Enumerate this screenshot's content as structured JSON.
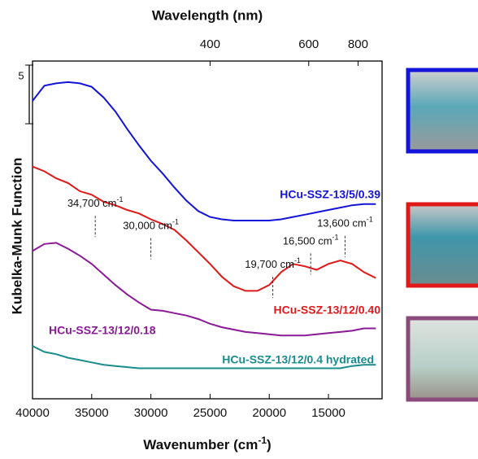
{
  "chart_data": {
    "type": "line",
    "xlabel": "Wavenumber",
    "xlabel_unit": "(cm",
    "xlabel_sup": "-1",
    "xlabel_end": ")",
    "ylabel": "Kubelka-Munk Function",
    "x2label": "Wavelength (nm)",
    "x2ticks": [
      400,
      600,
      800
    ],
    "scale_bar": 5,
    "x": [
      40000,
      39000,
      38000,
      37000,
      36000,
      35000,
      34000,
      33000,
      32000,
      31000,
      30000,
      29000,
      28000,
      27000,
      26000,
      25000,
      24000,
      23000,
      22000,
      21000,
      20000,
      19000,
      18000,
      17000,
      16000,
      15000,
      14000,
      13000,
      12000,
      11000
    ],
    "series": [
      {
        "name": "HCu-SSZ-13/5/0.39",
        "color": "#1414d8",
        "values": [
          25.4,
          26.7,
          26.9,
          27.0,
          26.9,
          26.6,
          25.7,
          24.5,
          23.0,
          21.6,
          20.3,
          19.2,
          18.0,
          16.9,
          16.0,
          15.5,
          15.3,
          15.2,
          15.2,
          15.2,
          15.2,
          15.3,
          15.5,
          15.7,
          15.9,
          16.1,
          16.3,
          16.5,
          16.6,
          16.6
        ]
      },
      {
        "name": "HCu-SSZ-13/12/0.40",
        "color": "#e01818",
        "values": [
          19.8,
          19.4,
          18.8,
          18.4,
          17.7,
          17.4,
          16.8,
          16.5,
          16.1,
          15.8,
          15.3,
          14.9,
          14.4,
          13.5,
          12.5,
          11.5,
          10.4,
          9.6,
          9.2,
          9.2,
          9.7,
          10.8,
          11.5,
          11.3,
          11.0,
          11.5,
          11.8,
          11.5,
          10.8,
          10.3
        ]
      },
      {
        "name": "HCu-SSZ-13/12/0.18",
        "color": "#8a1a96",
        "values": [
          12.6,
          13.2,
          13.3,
          12.8,
          12.2,
          11.5,
          10.6,
          9.7,
          8.9,
          8.2,
          7.6,
          7.5,
          7.3,
          7.1,
          6.8,
          6.4,
          6.1,
          5.9,
          5.7,
          5.6,
          5.5,
          5.4,
          5.4,
          5.4,
          5.5,
          5.6,
          5.7,
          5.8,
          6.0,
          6.0
        ]
      },
      {
        "name": "HCu-SSZ-13/12/0.4 hydrated",
        "color": "#1a8c8c",
        "values": [
          4.5,
          4.0,
          3.8,
          3.5,
          3.3,
          3.1,
          2.9,
          2.8,
          2.7,
          2.6,
          2.6,
          2.6,
          2.6,
          2.6,
          2.6,
          2.6,
          2.6,
          2.6,
          2.6,
          2.6,
          2.6,
          2.6,
          2.6,
          2.6,
          2.6,
          2.6,
          2.6,
          2.8,
          2.9,
          2.9
        ]
      }
    ],
    "annotations": [
      {
        "text": "34,700 cm",
        "sup": "-1",
        "x": 34700,
        "y": 15.6
      },
      {
        "text": "30,000 cm",
        "sup": "-1",
        "x": 30000,
        "y": 13.7
      },
      {
        "text": "19,700 cm",
        "sup": "-1",
        "x": 19700,
        "y": 10.4
      },
      {
        "text": "16,500 cm",
        "sup": "-1",
        "x": 16500,
        "y": 12.4
      },
      {
        "text": "13,600 cm",
        "sup": "-1",
        "x": 13600,
        "y": 13.9
      }
    ],
    "xlim": [
      40000,
      10470
    ],
    "ylim": [
      0,
      28.8
    ],
    "xticks": [
      40000,
      35000,
      30000,
      25000,
      20000,
      15000
    ]
  }
}
